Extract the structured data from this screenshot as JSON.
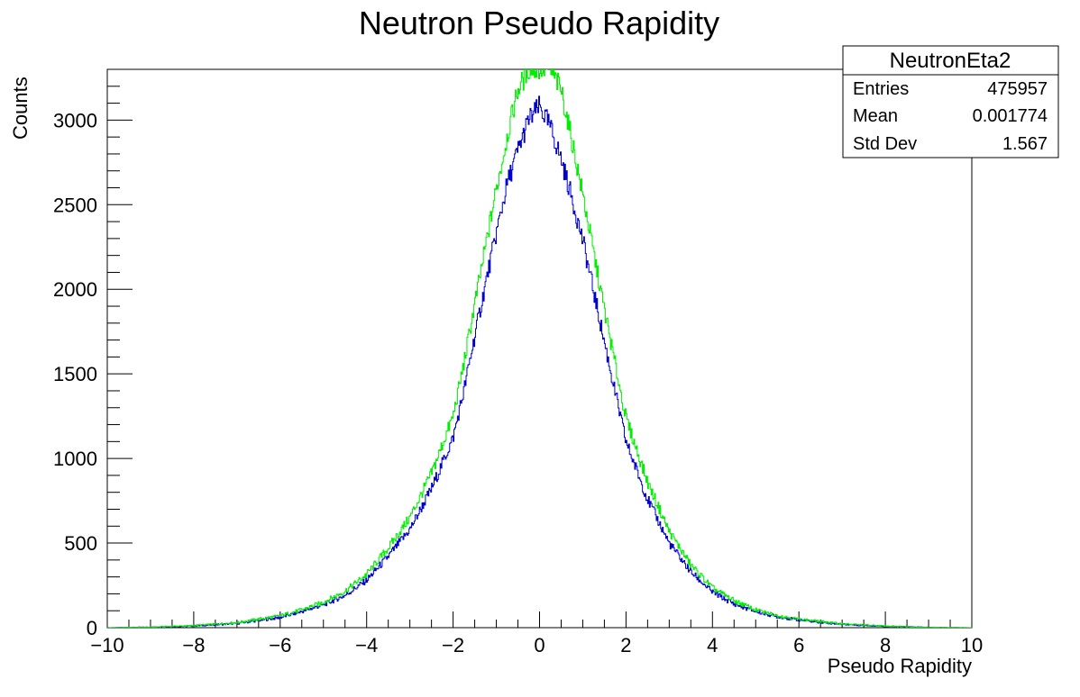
{
  "chart_data": {
    "type": "line",
    "title": "Neutron Pseudo Rapidity",
    "xlabel": "Pseudo Rapidity",
    "ylabel": "Counts",
    "xlim": [
      -10,
      10
    ],
    "ylim": [
      0,
      3300
    ],
    "xticks": [
      -10,
      -8,
      -6,
      -4,
      -2,
      0,
      2,
      4,
      6,
      8,
      10
    ],
    "xtick_labels": [
      "−10",
      "−8",
      "−6",
      "−4",
      "−2",
      "0",
      "2",
      "4",
      "6",
      "8",
      "10"
    ],
    "yticks": [
      0,
      500,
      1000,
      1500,
      2000,
      2500,
      3000
    ],
    "ytick_labels": [
      "0",
      "500",
      "1000",
      "1500",
      "2000",
      "2500",
      "3000"
    ],
    "grid": false,
    "stats_box": {
      "name": "NeutronEta2",
      "rows": [
        {
          "label": "Entries",
          "value": "475957"
        },
        {
          "label": "Mean",
          "value": "0.001774"
        },
        {
          "label": "Std Dev",
          "value": "1.567"
        }
      ]
    },
    "series": [
      {
        "color": "#0000cc",
        "x": [
          -10,
          -9,
          -8,
          -7,
          -6,
          -5.5,
          -5,
          -4.5,
          -4,
          -3.5,
          -3,
          -2.5,
          -2,
          -1.75,
          -1.5,
          -1.25,
          -1,
          -0.75,
          -0.5,
          -0.25,
          0,
          0.25,
          0.5,
          0.75,
          1,
          1.25,
          1.5,
          1.75,
          2,
          2.5,
          3,
          3.5,
          4,
          4.5,
          5,
          5.5,
          6,
          7,
          8,
          9,
          10
        ],
        "y": [
          0,
          3,
          10,
          25,
          60,
          95,
          135,
          190,
          280,
          420,
          580,
          820,
          1120,
          1400,
          1720,
          2030,
          2330,
          2620,
          2820,
          3000,
          3080,
          2960,
          2770,
          2540,
          2290,
          1990,
          1690,
          1390,
          1100,
          760,
          500,
          330,
          210,
          140,
          95,
          65,
          45,
          20,
          8,
          2,
          0
        ]
      },
      {
        "color": "#00ee00",
        "x": [
          -10,
          -9,
          -8,
          -7,
          -6,
          -5.5,
          -5,
          -4.5,
          -4,
          -3.5,
          -3,
          -2.5,
          -2,
          -1.75,
          -1.5,
          -1.25,
          -1,
          -0.75,
          -0.5,
          -0.25,
          0,
          0.25,
          0.5,
          0.75,
          1,
          1.25,
          1.5,
          1.75,
          2,
          2.5,
          3,
          3.5,
          4,
          4.5,
          5,
          5.5,
          6,
          7,
          8,
          9,
          10
        ],
        "y": [
          0,
          3,
          12,
          30,
          70,
          105,
          150,
          215,
          315,
          470,
          650,
          910,
          1250,
          1560,
          1910,
          2250,
          2590,
          2900,
          3180,
          3300,
          3300,
          3300,
          3180,
          2880,
          2560,
          2220,
          1880,
          1560,
          1240,
          860,
          570,
          370,
          235,
          160,
          105,
          72,
          50,
          22,
          9,
          2,
          0
        ]
      }
    ]
  }
}
